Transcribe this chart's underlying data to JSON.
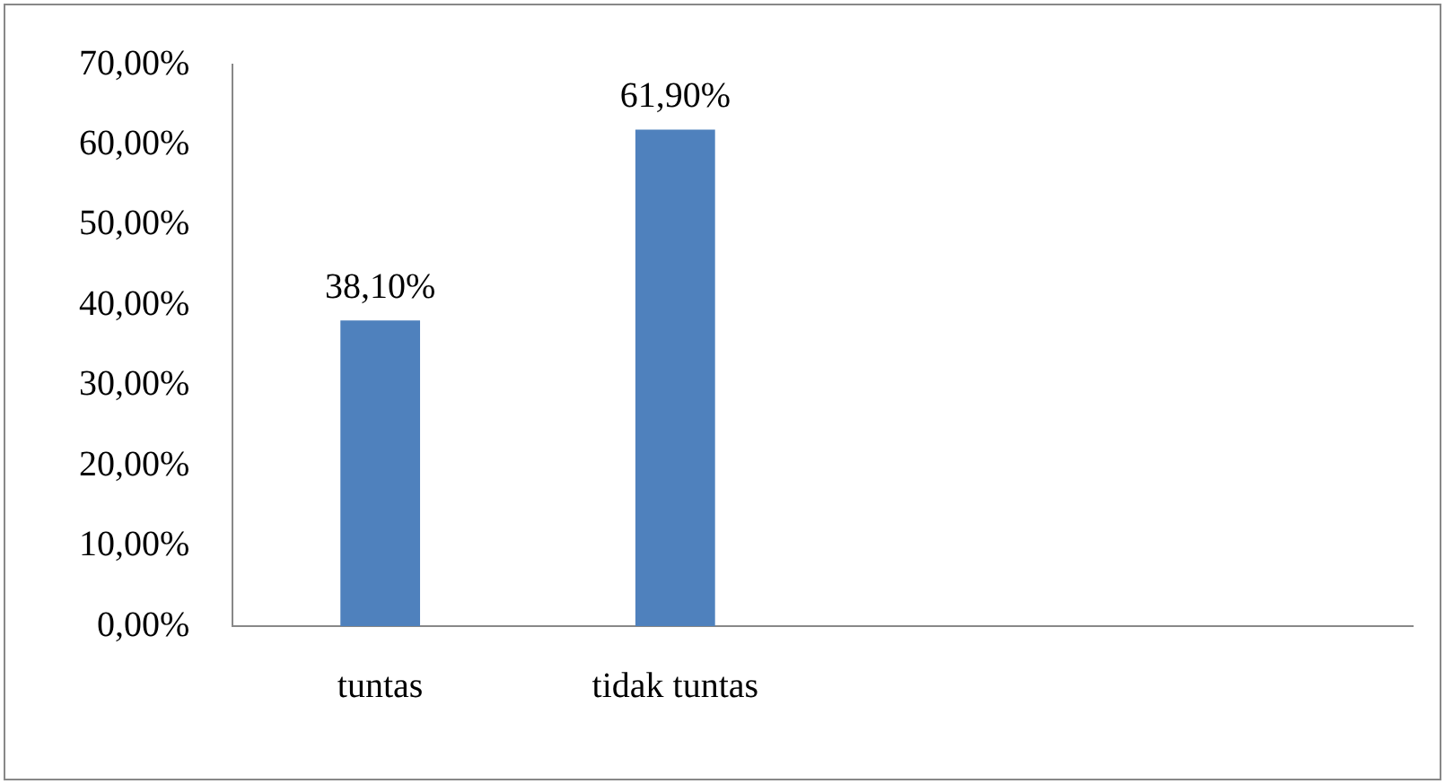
{
  "chart_data": {
    "type": "bar",
    "categories": [
      "tuntas",
      "tidak tuntas",
      null,
      null
    ],
    "series": [
      {
        "color": "#4f81bd",
        "values": [
          38.1,
          61.9,
          null,
          null
        ],
        "value_labels": [
          "38,10%",
          "61,90%",
          null,
          null
        ]
      }
    ],
    "ylim": [
      0,
      70
    ],
    "yticks": [
      {
        "value": 0,
        "label": "0,00%"
      },
      {
        "value": 10,
        "label": "10,00%"
      },
      {
        "value": 20,
        "label": "20,00%"
      },
      {
        "value": 30,
        "label": "30,00%"
      },
      {
        "value": 40,
        "label": "40,00%"
      },
      {
        "value": 50,
        "label": "50,00%"
      },
      {
        "value": 60,
        "label": "60,00%"
      },
      {
        "value": 70,
        "label": "70,00%"
      }
    ],
    "grid": false,
    "legend": false
  }
}
